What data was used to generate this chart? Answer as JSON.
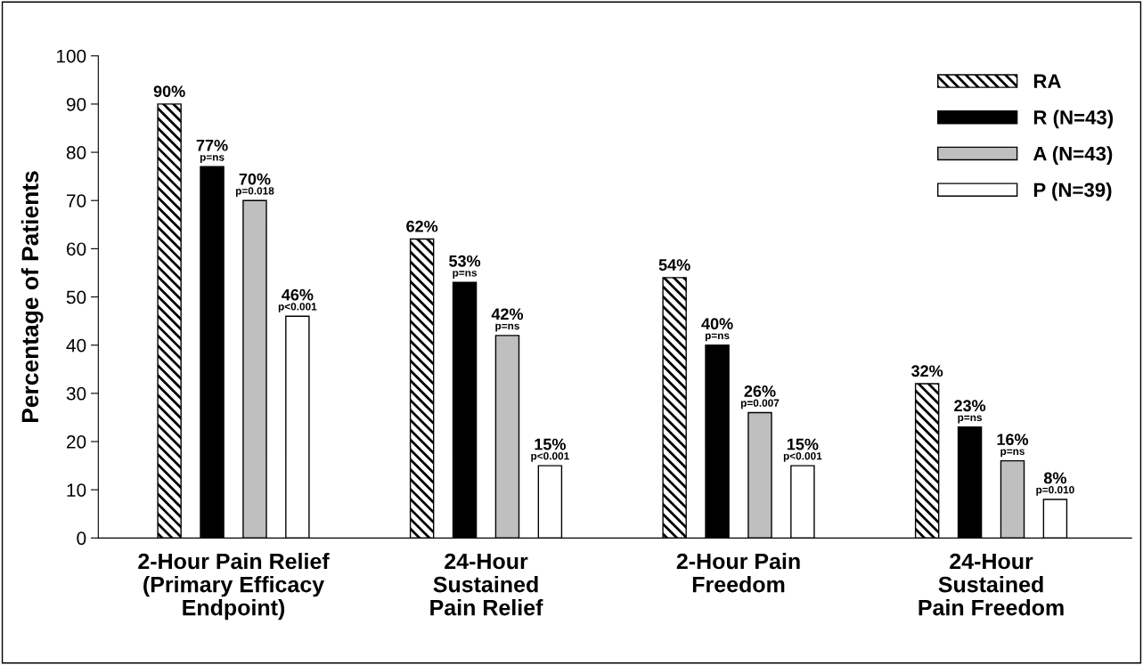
{
  "chart_data": {
    "type": "bar",
    "ylabel": "Percentage of Patients",
    "categories": [
      "2-Hour Pain Relief\n(Primary Efficacy\nEndpoint)",
      "24-Hour\nSustained\nPain Relief",
      "2-Hour Pain\nFreedom",
      "24-Hour\nSustained\nPain Freedom"
    ],
    "series": [
      {
        "name": "RA",
        "color": "#000000",
        "values": [
          90,
          62,
          54,
          32
        ],
        "value_labels": [
          "90%",
          "62%",
          "54%",
          "32%"
        ]
      },
      {
        "name": "R (N=43)",
        "color": "#000000",
        "values": [
          77,
          53,
          40,
          23
        ],
        "value_labels": [
          "77%\np=ns",
          "53%\np=ns",
          "40%\np=ns",
          "23%\np=ns"
        ]
      },
      {
        "name": "A (N=43)",
        "color": "#bfbfbf",
        "values": [
          70,
          42,
          26,
          16
        ],
        "value_labels": [
          "70%\np=0.018",
          "42%\np=ns",
          "26%\np=0.007",
          "16%\np=ns"
        ]
      },
      {
        "name": "P (N=39)",
        "color": "#ffffff",
        "values": [
          46,
          15,
          15,
          8
        ],
        "value_labels": [
          "46%\np<0.001",
          "15%\np<0.001",
          "15%\np<0.001",
          "8%\np=0.010"
        ]
      }
    ],
    "ylim": [
      0,
      100
    ],
    "yticks": [
      0,
      10,
      20,
      30,
      40,
      50,
      60,
      70,
      80,
      90,
      100
    ],
    "legend": "top right",
    "grid": false
  }
}
